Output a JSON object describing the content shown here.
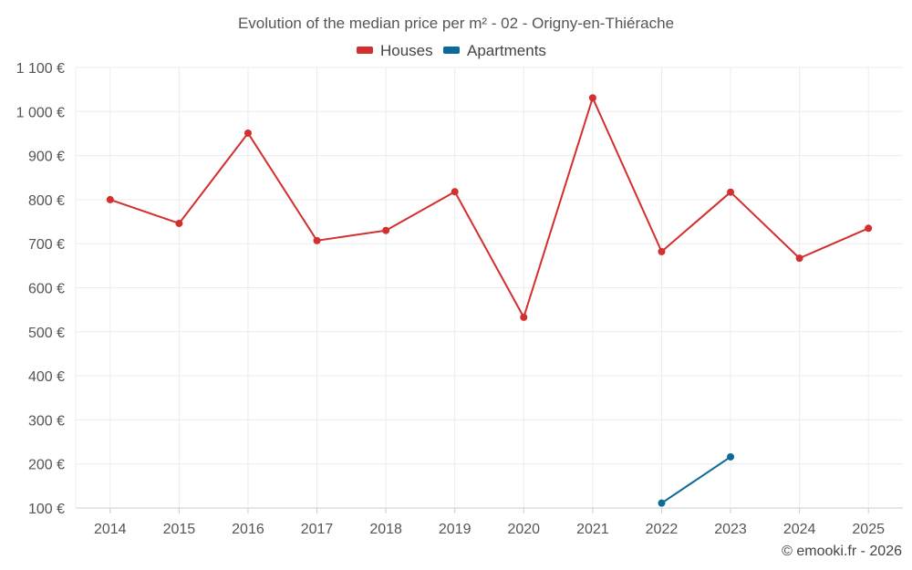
{
  "chart_data": {
    "type": "line",
    "title": "Evolution of the median price per m² - 02 - Origny-en-Thiérache",
    "categories": [
      "2014",
      "2015",
      "2016",
      "2017",
      "2018",
      "2019",
      "2020",
      "2021",
      "2022",
      "2023",
      "2024",
      "2025"
    ],
    "series": [
      {
        "name": "Houses",
        "color": "#d32f2f",
        "values": [
          800,
          746,
          951,
          707,
          730,
          818,
          533,
          1031,
          682,
          817,
          667,
          735
        ]
      },
      {
        "name": "Apartments",
        "color": "#0b6a9a",
        "values": [
          null,
          null,
          null,
          null,
          null,
          null,
          null,
          null,
          111,
          216,
          null,
          null
        ]
      }
    ],
    "ylim": [
      100,
      1100
    ],
    "yticks": [
      100,
      200,
      300,
      400,
      500,
      600,
      700,
      800,
      900,
      1000,
      1100
    ],
    "ytick_labels": [
      "100 €",
      "200 €",
      "300 €",
      "400 €",
      "500 €",
      "600 €",
      "700 €",
      "800 €",
      "900 €",
      "1 000 €",
      "1 100 €"
    ],
    "legend_position": "top-center",
    "grid": true
  },
  "credit": "© emooki.fr - 2026"
}
